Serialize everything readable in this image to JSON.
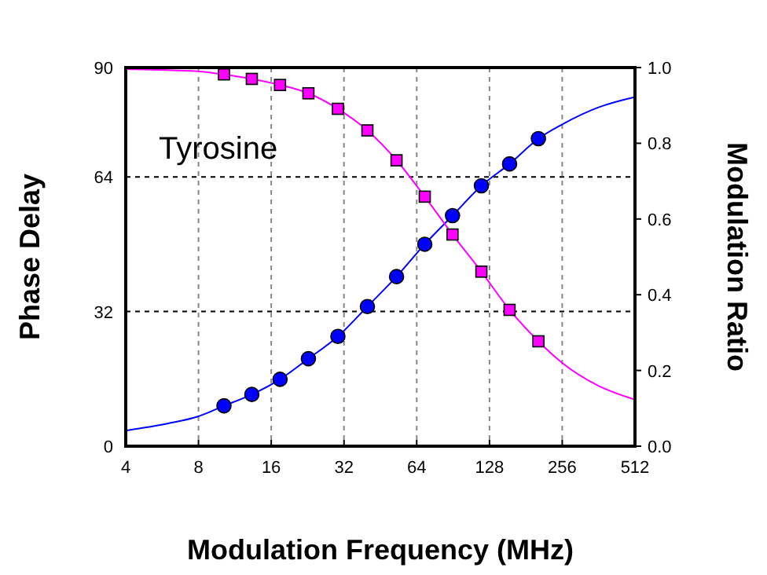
{
  "chart_data": {
    "type": "line",
    "xlabel": "Modulation Frequency (MHz)",
    "ylabel": "Phase Delay",
    "y2label": "Modulation Ratio",
    "annotations": [
      "Tyrosine"
    ],
    "log": "x",
    "grid": true,
    "xlim": [
      4,
      512
    ],
    "xticks": [
      4,
      8,
      16,
      32,
      64,
      128,
      256,
      512
    ],
    "ylim": [
      0,
      90
    ],
    "yticks": [
      0,
      32,
      64,
      90
    ],
    "y2lim": [
      0,
      1
    ],
    "y2ticks": [
      {
        "value": 0,
        "label": "0.0"
      },
      {
        "value": 0.2,
        "label": "0.2"
      },
      {
        "value": 0.4,
        "label": "0.4"
      },
      {
        "value": 0.6,
        "label": "0.6"
      },
      {
        "value": 0.8,
        "label": "0.8"
      },
      {
        "value": 1,
        "label": "1.0"
      }
    ],
    "series": [
      {
        "color": "#0000ff",
        "x": [
          4,
          6,
          8,
          10.2,
          13.3,
          17.4,
          22.8,
          30.2,
          40,
          52.8,
          69.1,
          90,
          118.5,
          155,
          204,
          256,
          360,
          512
        ],
        "values": [
          3.7,
          5.4,
          7.1,
          9.6,
          12.3,
          15.9,
          20.8,
          26.1,
          33.2,
          40.3,
          48.0,
          54.8,
          61.9,
          67.1,
          73.1,
          76.5,
          80.5,
          83
        ]
      },
      {
        "type": "scatter",
        "color": "#0000ff",
        "marker": "circle",
        "x": [
          10.2,
          13.3,
          17.4,
          22.8,
          30.2,
          40,
          52.8,
          69.1,
          90,
          118.5,
          155,
          204
        ],
        "values": [
          9.6,
          12.3,
          15.9,
          20.8,
          26.1,
          33.2,
          40.3,
          48.0,
          54.8,
          61.9,
          67.1,
          73.1
        ]
      },
      {
        "axis": "y2",
        "color": "#ff00ff",
        "x": [
          4,
          6,
          8,
          10.2,
          13.3,
          17.4,
          22.8,
          30.2,
          40,
          52.8,
          69.1,
          90,
          118.5,
          155,
          204,
          256,
          360,
          512
        ],
        "values": [
          0.996,
          0.993,
          0.99,
          0.982,
          0.97,
          0.954,
          0.932,
          0.891,
          0.834,
          0.755,
          0.659,
          0.559,
          0.461,
          0.36,
          0.277,
          0.22,
          0.16,
          0.123
        ]
      },
      {
        "type": "scatter",
        "axis": "y2",
        "color": "#ff00ff",
        "marker": "square",
        "x": [
          10.2,
          13.3,
          17.4,
          22.8,
          30.2,
          40,
          52.8,
          69.1,
          90,
          118.5,
          155,
          204
        ],
        "values": [
          0.982,
          0.97,
          0.954,
          0.932,
          0.891,
          0.834,
          0.755,
          0.659,
          0.559,
          0.461,
          0.36,
          0.277
        ]
      }
    ]
  }
}
